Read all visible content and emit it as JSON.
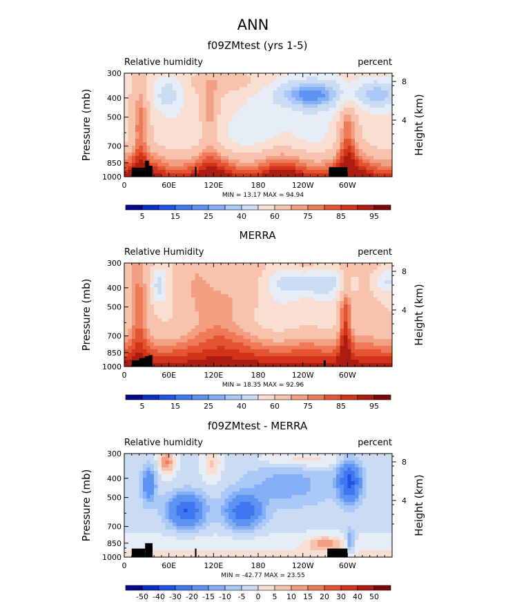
{
  "page_title": "ANN",
  "chart_data": [
    {
      "type": "heatmap",
      "title": "f09ZMtest (yrs 1-5)",
      "left_label": "Relative humidity",
      "right_label": "percent",
      "ylabel": "Pressure (mb)",
      "ylabel_right": "Height (km)",
      "yticks": [
        "300",
        "400",
        "500",
        "700",
        "850",
        "1000"
      ],
      "ytick_values": [
        300,
        400,
        500,
        700,
        850,
        1000
      ],
      "ylim": [
        1000,
        300
      ],
      "height_ticks": [
        "8",
        "4"
      ],
      "xticks": [
        "0",
        "60E",
        "120E",
        "180",
        "120W",
        "60W"
      ],
      "xtick_values": [
        0,
        60,
        120,
        180,
        240,
        300
      ],
      "xlim": [
        0,
        360
      ],
      "min_max": "MIN =   13.17   MAX =   94.94",
      "min": 13.17,
      "max": 94.94,
      "colorbar_labels": [
        "5",
        "15",
        "25",
        "40",
        "60",
        "75",
        "85",
        "95"
      ],
      "colorbar_levels": [
        5,
        10,
        15,
        20,
        25,
        30,
        40,
        50,
        60,
        70,
        75,
        80,
        85,
        90,
        95
      ]
    },
    {
      "type": "heatmap",
      "title": "MERRA",
      "left_label": "Relative Humidity",
      "right_label": "percent",
      "ylabel": "Pressure (mb)",
      "ylabel_right": "Height (km)",
      "yticks": [
        "300",
        "400",
        "500",
        "700",
        "850",
        "1000"
      ],
      "ytick_values": [
        300,
        400,
        500,
        700,
        850,
        1000
      ],
      "ylim": [
        1000,
        300
      ],
      "height_ticks": [
        "8",
        "4"
      ],
      "xticks": [
        "0",
        "60E",
        "120E",
        "180",
        "120W",
        "60W"
      ],
      "xtick_values": [
        0,
        60,
        120,
        180,
        240,
        300
      ],
      "xlim": [
        0,
        360
      ],
      "min_max": "MIN =   18.35   MAX =   92.96",
      "min": 18.35,
      "max": 92.96,
      "colorbar_labels": [
        "5",
        "15",
        "25",
        "40",
        "60",
        "75",
        "85",
        "95"
      ],
      "colorbar_levels": [
        5,
        10,
        15,
        20,
        25,
        30,
        40,
        50,
        60,
        70,
        75,
        80,
        85,
        90,
        95
      ]
    },
    {
      "type": "heatmap",
      "title": "f09ZMtest - MERRA",
      "left_label": "Relative humidity",
      "right_label": "percent",
      "ylabel": "Pressure (mb)",
      "ylabel_right": "Height (km)",
      "yticks": [
        "300",
        "400",
        "500",
        "700",
        "850",
        "1000"
      ],
      "ytick_values": [
        300,
        400,
        500,
        700,
        850,
        1000
      ],
      "ylim": [
        1000,
        300
      ],
      "height_ticks": [
        "8",
        "4"
      ],
      "xticks": [
        "0",
        "60E",
        "120E",
        "180",
        "120W",
        "60W"
      ],
      "xtick_values": [
        0,
        60,
        120,
        180,
        240,
        300
      ],
      "xlim": [
        0,
        360
      ],
      "min_max": "MIN = -42.77   MAX =   23.55",
      "min": -42.77,
      "max": 23.55,
      "colorbar_labels": [
        "-50",
        "-40",
        "-30",
        "-20",
        "-15",
        "-10",
        "-5",
        "0",
        "5",
        "10",
        "15",
        "20",
        "30",
        "40",
        "50"
      ],
      "colorbar_levels": [
        -50,
        -40,
        -30,
        -20,
        -15,
        -10,
        -5,
        0,
        5,
        10,
        15,
        20,
        30,
        40,
        50
      ]
    }
  ],
  "colors": {
    "colorbar": [
      "#08088c",
      "#0a2fc2",
      "#1f54e3",
      "#3d78f0",
      "#5d94f3",
      "#83aff6",
      "#aac9f6",
      "#cadcf3",
      "#e7edf6",
      "#f9dfd2",
      "#f7c3ac",
      "#f39f82",
      "#ee7a58",
      "#e55430",
      "#d1341a",
      "#ab1d10",
      "#7a0808"
    ],
    "terrain": "#000000"
  }
}
